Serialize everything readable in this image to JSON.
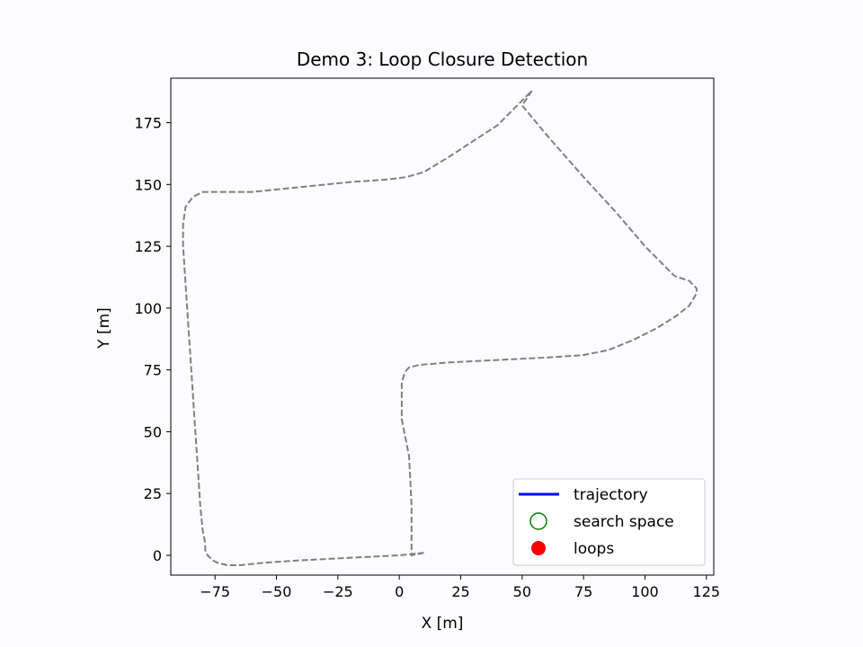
{
  "chart_data": {
    "type": "line",
    "title": "Demo 3: Loop Closure Detection",
    "xlabel": "X [m]",
    "ylabel": "Y [m]",
    "xlim": [
      -93,
      128
    ],
    "ylim": [
      -8,
      193
    ],
    "xticks": [
      -75,
      -50,
      -25,
      0,
      25,
      50,
      75,
      100,
      125
    ],
    "xtick_labels": [
      "−75",
      "−50",
      "−25",
      "0",
      "25",
      "50",
      "75",
      "100",
      "125"
    ],
    "yticks": [
      0,
      25,
      50,
      75,
      100,
      125,
      150,
      175
    ],
    "ytick_labels": [
      "0",
      "25",
      "50",
      "75",
      "100",
      "125",
      "150",
      "175"
    ],
    "grid": false,
    "legend_position": "lower-right",
    "legend": [
      {
        "label": "trajectory",
        "kind": "line",
        "color": "#0000ff"
      },
      {
        "label": "search space",
        "kind": "open-circle",
        "color": "#008000"
      },
      {
        "label": "loops",
        "kind": "filled-circle",
        "color": "#ff0000"
      }
    ],
    "series": [
      {
        "role": "ground-truth path",
        "color": "#808080",
        "style": "dashed",
        "x": [
          10,
          5,
          5,
          5,
          4,
          1,
          1,
          1,
          2,
          3,
          4,
          8,
          20,
          40,
          60,
          75,
          85,
          95,
          105,
          113,
          118,
          121,
          121,
          118,
          112,
          100,
          88,
          75,
          60,
          50,
          54,
          40,
          20,
          10,
          3,
          -5,
          -20,
          -40,
          -60,
          -75,
          -80,
          -84,
          -87,
          -88,
          -88,
          -87,
          -86,
          -85,
          -84,
          -83,
          -82,
          -81,
          -80,
          -79,
          -79,
          -78,
          -76,
          -74,
          -70,
          -65,
          -55,
          -40,
          -20,
          0,
          10
        ],
        "y": [
          1,
          0,
          5,
          20,
          40,
          55,
          65,
          70,
          73,
          75,
          76,
          77,
          78,
          79,
          80,
          81,
          83,
          87,
          92,
          97,
          101,
          106,
          108,
          111,
          113,
          125,
          139,
          153,
          170,
          182,
          188,
          174,
          161,
          155,
          153,
          152,
          151,
          149,
          147,
          147,
          147,
          145,
          141,
          134,
          125,
          110,
          95,
          80,
          65,
          50,
          35,
          20,
          10,
          5,
          2,
          0,
          -2,
          -3,
          -4,
          -4,
          -3,
          -2,
          -1,
          0,
          1
        ]
      }
    ]
  }
}
